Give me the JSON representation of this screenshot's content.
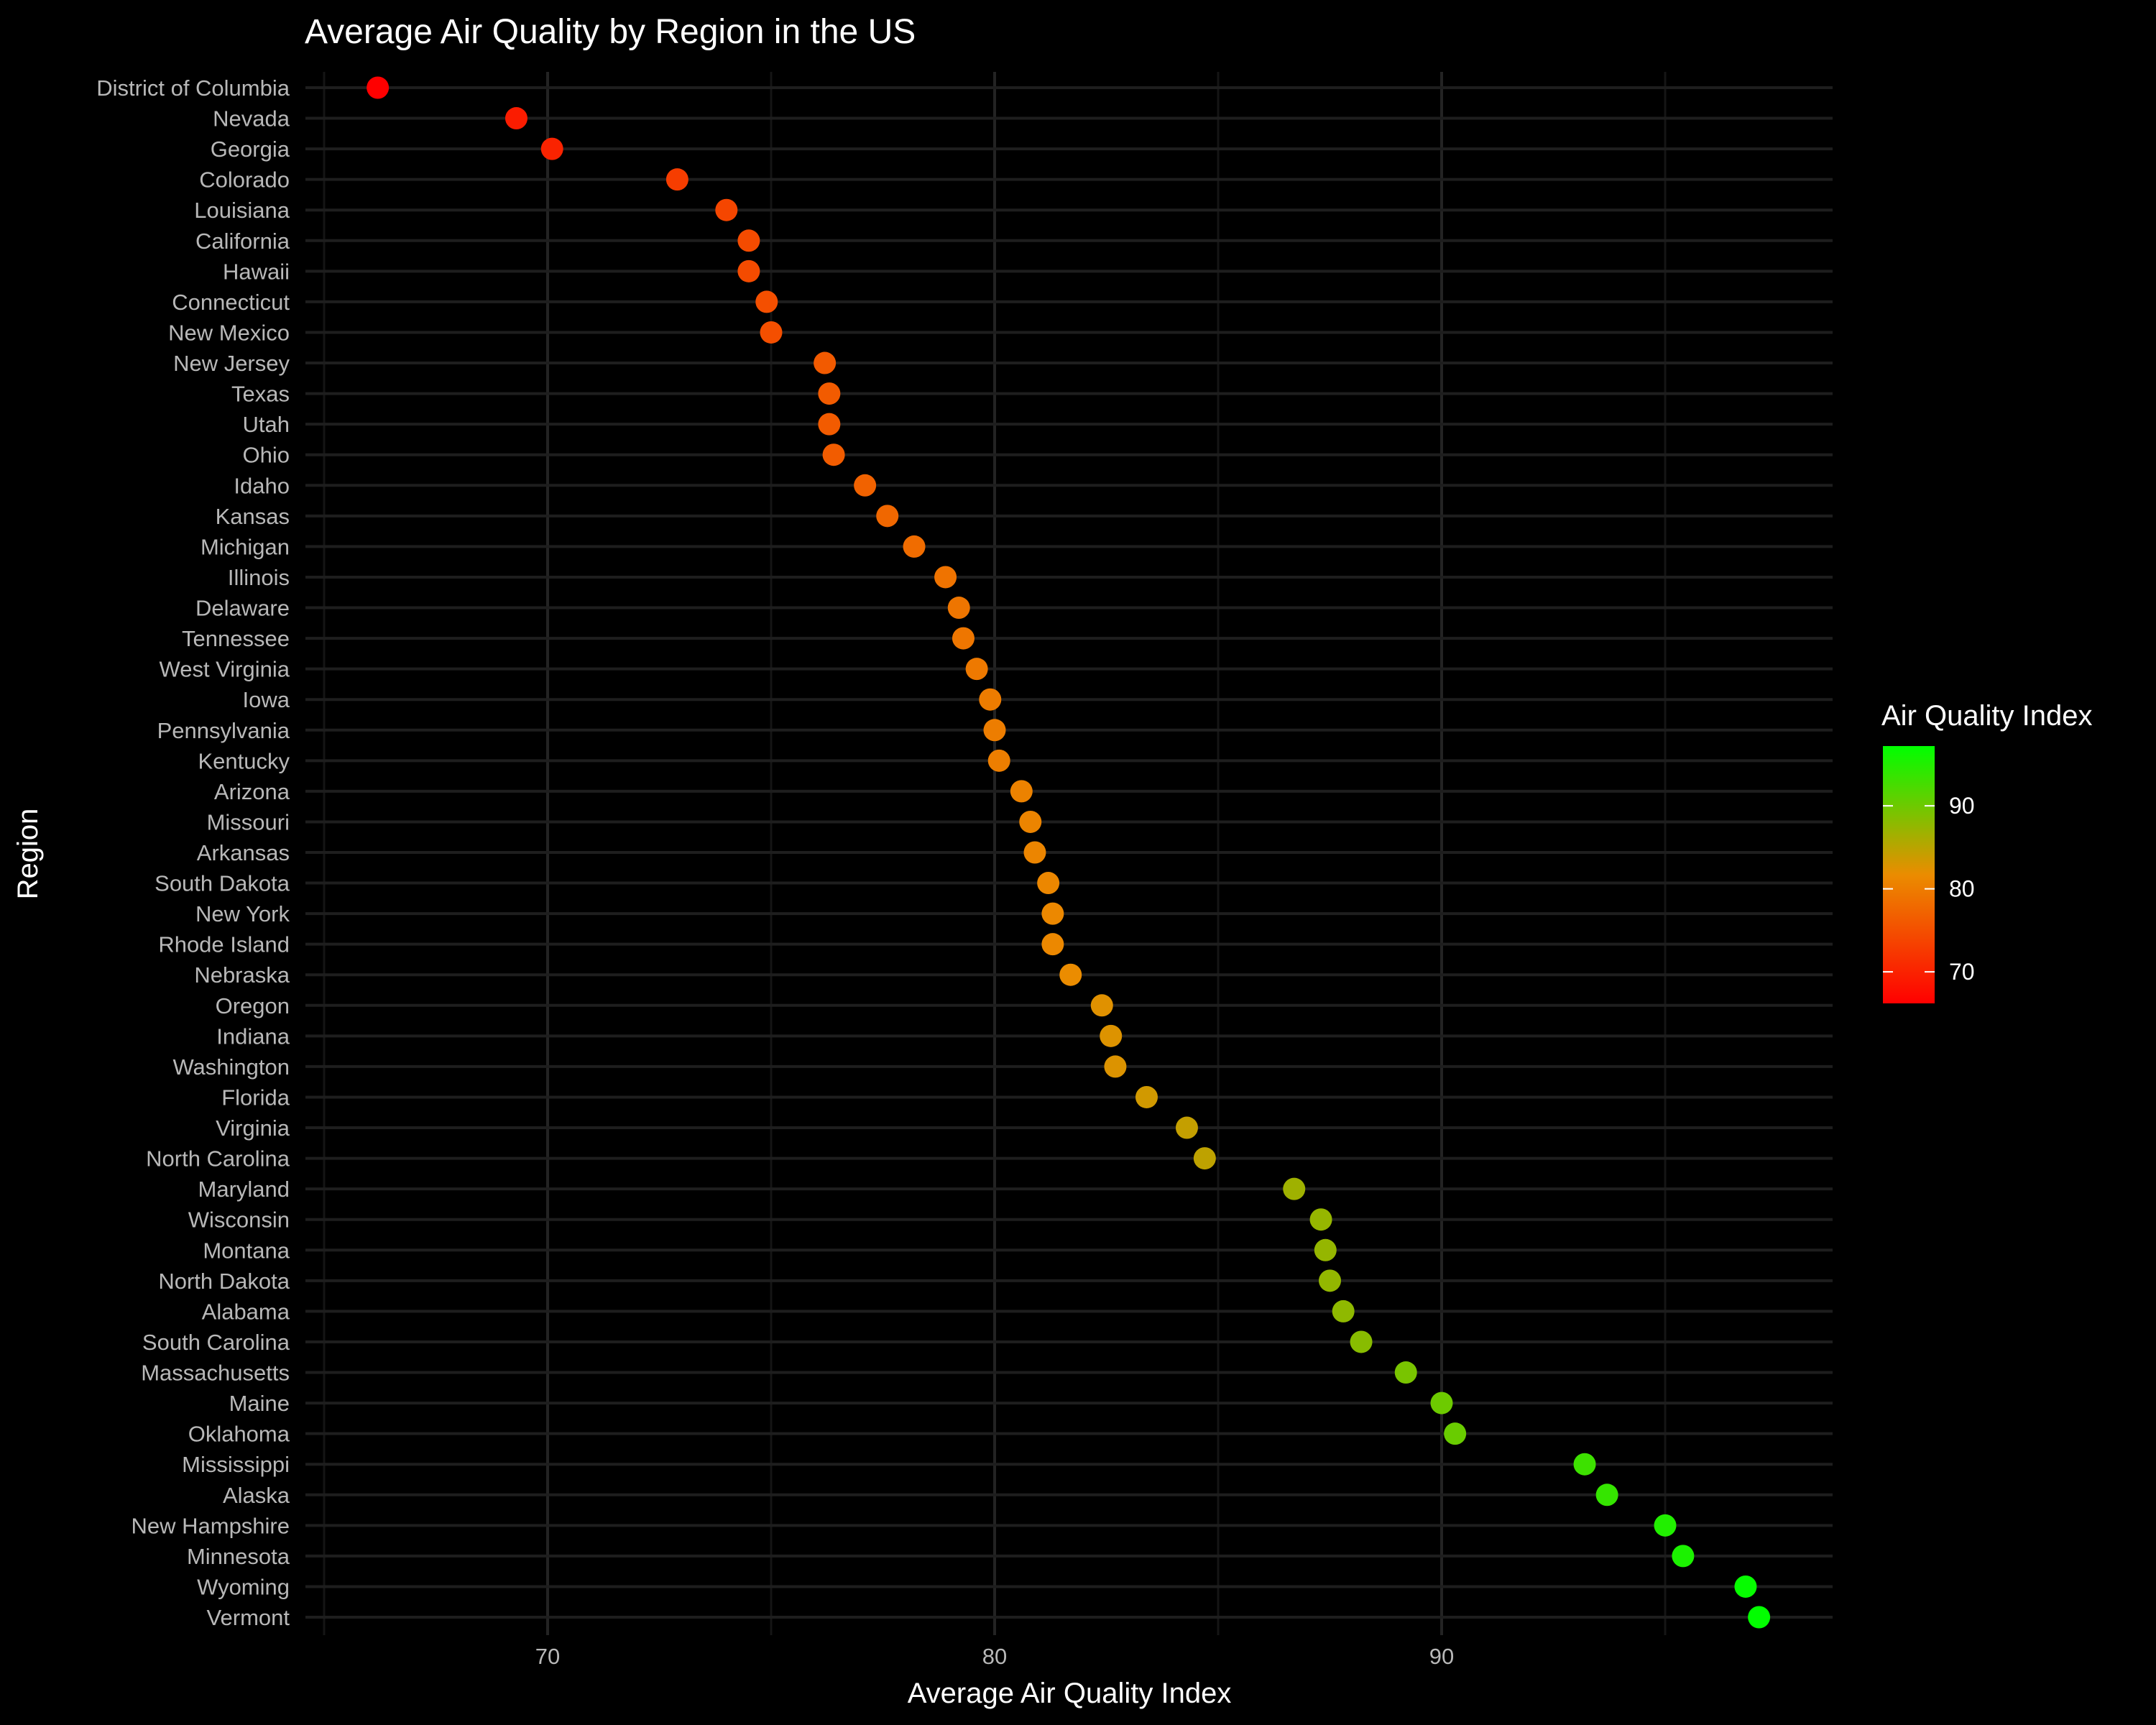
{
  "chart_data": {
    "type": "scatter",
    "title": "Average Air Quality by Region in the US",
    "xlabel": "Average Air Quality Index",
    "ylabel": "Region",
    "xlim": [
      65,
      98.8
    ],
    "x_ticks": [
      70,
      80,
      90
    ],
    "grid": true,
    "legend": {
      "title": "Air Quality Index",
      "placement": "right",
      "type": "colorbar",
      "range": [
        66.2,
        97.2
      ],
      "ticks": [
        70,
        80,
        90
      ],
      "color_low": "#ff0000",
      "color_high": "#00ff00"
    },
    "categories": [
      "District of Columbia",
      "Nevada",
      "Georgia",
      "Colorado",
      "Louisiana",
      "California",
      "Hawaii",
      "Connecticut",
      "New Mexico",
      "New Jersey",
      "Texas",
      "Utah",
      "Ohio",
      "Idaho",
      "Kansas",
      "Michigan",
      "Illinois",
      "Delaware",
      "Tennessee",
      "West Virginia",
      "Iowa",
      "Pennsylvania",
      "Kentucky",
      "Arizona",
      "Missouri",
      "Arkansas",
      "South Dakota",
      "New York",
      "Rhode Island",
      "Nebraska",
      "Oregon",
      "Indiana",
      "Washington",
      "Florida",
      "Virginia",
      "North Carolina",
      "Maryland",
      "Wisconsin",
      "Montana",
      "North Dakota",
      "Alabama",
      "South Carolina",
      "Massachusetts",
      "Maine",
      "Oklahoma",
      "Mississippi",
      "Alaska",
      "New Hampshire",
      "Minnesota",
      "Wyoming",
      "Vermont"
    ],
    "values": [
      66.2,
      69.3,
      70.1,
      72.9,
      74.0,
      74.5,
      74.5,
      74.9,
      75.0,
      76.2,
      76.3,
      76.3,
      76.4,
      77.1,
      77.6,
      78.2,
      78.9,
      79.2,
      79.3,
      79.6,
      79.9,
      80.0,
      80.1,
      80.6,
      80.8,
      80.9,
      81.2,
      81.3,
      81.3,
      81.7,
      82.4,
      82.6,
      82.7,
      83.4,
      84.3,
      84.7,
      86.7,
      87.3,
      87.4,
      87.5,
      87.8,
      88.2,
      89.2,
      90.0,
      90.3,
      93.2,
      93.7,
      95.0,
      95.4,
      96.8,
      97.1
    ]
  }
}
